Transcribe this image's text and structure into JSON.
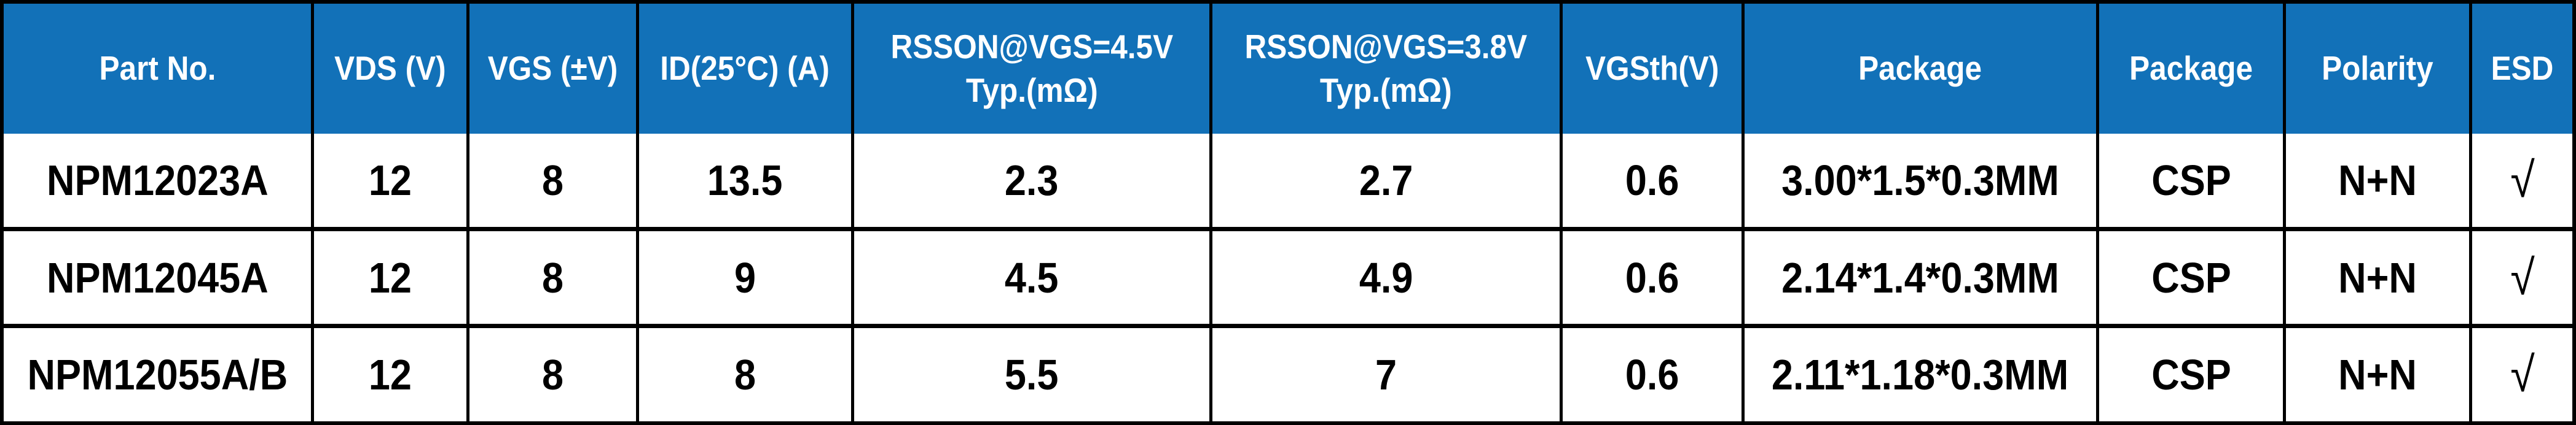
{
  "colors": {
    "header_bg": "#1271B8",
    "header_text": "#FFFFFF",
    "border": "#000000",
    "body_bg": "#FFFFFF",
    "body_text": "#000000"
  },
  "columns": [
    "Part No.",
    "VDS (V)",
    "VGS (±V)",
    "ID(25°C) (A)",
    "RSSON@VGS=4.5V\nTyp.(mΩ)",
    "RSSON@VGS=3.8V\nTyp.(mΩ)",
    "VGSth(V)",
    "Package",
    "Package",
    "Polarity",
    "ESD"
  ],
  "rows": [
    {
      "cells": [
        "NPM12023A",
        "12",
        "8",
        "13.5",
        "2.3",
        "2.7",
        "0.6",
        "3.00*1.5*0.3MM",
        "CSP",
        "N+N",
        "√"
      ]
    },
    {
      "cells": [
        "NPM12045A",
        "12",
        "8",
        "9",
        "4.5",
        "4.9",
        "0.6",
        "2.14*1.4*0.3MM",
        "CSP",
        "N+N",
        "√"
      ]
    },
    {
      "cells": [
        "NPM12055A/B",
        "12",
        "8",
        "8",
        "5.5",
        "7",
        "0.6",
        "2.11*1.18*0.3MM",
        "CSP",
        "N+N",
        "√"
      ]
    }
  ]
}
